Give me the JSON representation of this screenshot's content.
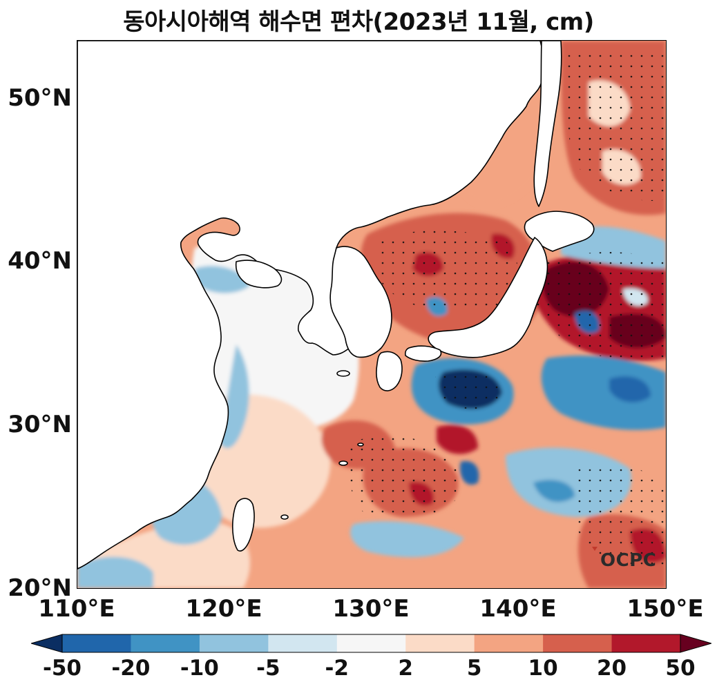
{
  "title": "동아시아해역 해수면 편차(2023년 11월, cm)",
  "axes": {
    "lat_ticks": [
      "50°N",
      "40°N",
      "30°N",
      "20°N"
    ],
    "lon_ticks": [
      "110°E",
      "120°E",
      "130°E",
      "140°E",
      "150°E"
    ]
  },
  "colorbar": {
    "ticks": [
      "-50",
      "-20",
      "-10",
      "-5",
      "-2",
      "2",
      "5",
      "10",
      "20",
      "50"
    ],
    "colors": [
      "#0b2e62",
      "#2066ab",
      "#4093c4",
      "#91c3de",
      "#d2e6f0",
      "#f6f6f6",
      "#fbdbc7",
      "#f3a482",
      "#d6604d",
      "#b2182b",
      "#67001f"
    ]
  },
  "logo": "OCPC",
  "map": {
    "extent_lon": [
      110,
      150
    ],
    "extent_lat": [
      20,
      53.5
    ],
    "ocean_base_color": "#f3a482",
    "land_color": "#ffffff"
  }
}
